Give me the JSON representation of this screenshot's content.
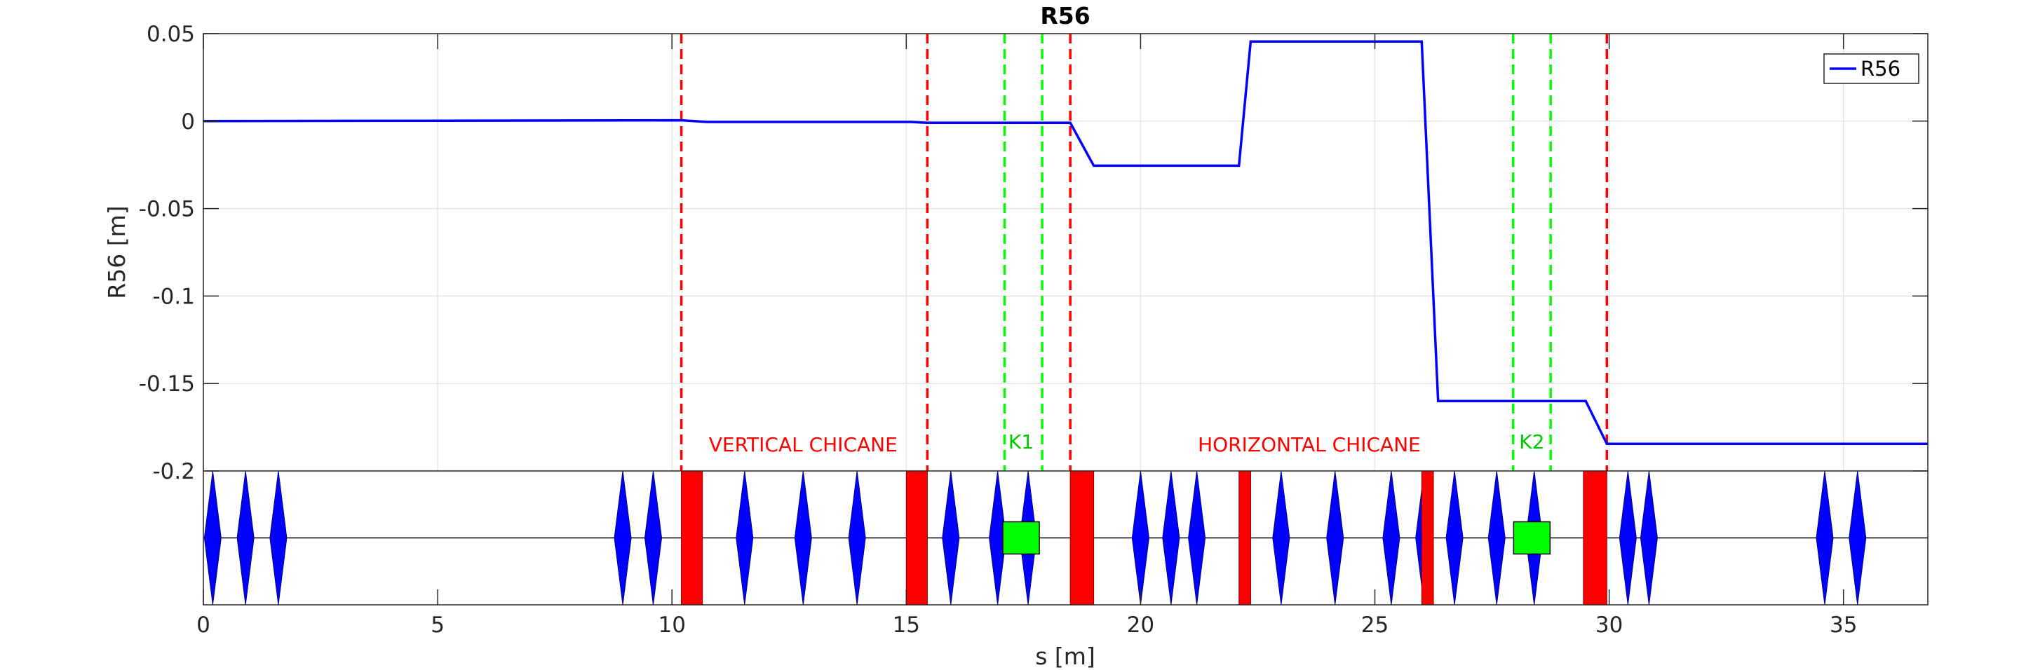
{
  "chart_data": {
    "type": "line",
    "title": "R56",
    "xlabel": "s [m]",
    "ylabel": "R56 [m]",
    "xlim": [
      0,
      36.8
    ],
    "ylim": [
      -0.2,
      0.05
    ],
    "xticks": [
      0,
      5,
      10,
      15,
      20,
      25,
      30,
      35
    ],
    "yticks": [
      -0.2,
      -0.15,
      -0.1,
      -0.05,
      0,
      0.05
    ],
    "ytick_labels": [
      "-0.2",
      "-0.15",
      "-0.1",
      "-0.05",
      "0",
      "0.05"
    ],
    "grid": true,
    "legend_position": "top-right",
    "series": [
      {
        "name": "R56",
        "color": "#0000ff",
        "x": [
          0,
          10.2,
          10.75,
          15.1,
          15.45,
          18.5,
          19.0,
          22.1,
          22.35,
          26.0,
          26.35,
          29.5,
          29.95,
          36.8
        ],
        "y": [
          0,
          0.0005,
          -0.0005,
          -0.0005,
          -0.001,
          -0.001,
          -0.0255,
          -0.0255,
          0.0455,
          0.0455,
          -0.16,
          -0.16,
          -0.1845,
          -0.1845
        ]
      }
    ],
    "red_dashed_lines": [
      10.2,
      15.45,
      18.5,
      29.95
    ],
    "green_dashed_lines": [
      17.1,
      17.9,
      27.95,
      28.75
    ],
    "annotations": [
      {
        "text": "VERTICAL CHICANE",
        "x": 12.8,
        "color": "#ff0000"
      },
      {
        "text": "K1",
        "x": 17.45,
        "color": "#00cc00"
      },
      {
        "text": "HORIZONTAL CHICANE",
        "x": 23.6,
        "color": "#ff0000"
      },
      {
        "text": "K2",
        "x": 28.35,
        "color": "#00cc00"
      }
    ],
    "lattice": {
      "quadrupoles": [
        0.2,
        0.9,
        1.6,
        8.95,
        9.6,
        11.55,
        12.8,
        13.95,
        15.95,
        16.95,
        17.6,
        20.0,
        20.65,
        21.2,
        23.0,
        24.15,
        25.35,
        26.05,
        26.7,
        27.6,
        28.4,
        30.4,
        30.85,
        34.6,
        35.3
      ],
      "dipoles": [
        {
          "s": 10.2,
          "len": 0.45
        },
        {
          "s": 15.0,
          "len": 0.45
        },
        {
          "s": 18.5,
          "len": 0.5
        },
        {
          "s": 22.1,
          "len": 0.25
        },
        {
          "s": 26.0,
          "len": 0.25
        },
        {
          "s": 29.45,
          "len": 0.5
        }
      ],
      "kickers": [
        {
          "name": "K1",
          "s": 17.45
        },
        {
          "name": "K2",
          "s": 28.35
        }
      ]
    }
  }
}
